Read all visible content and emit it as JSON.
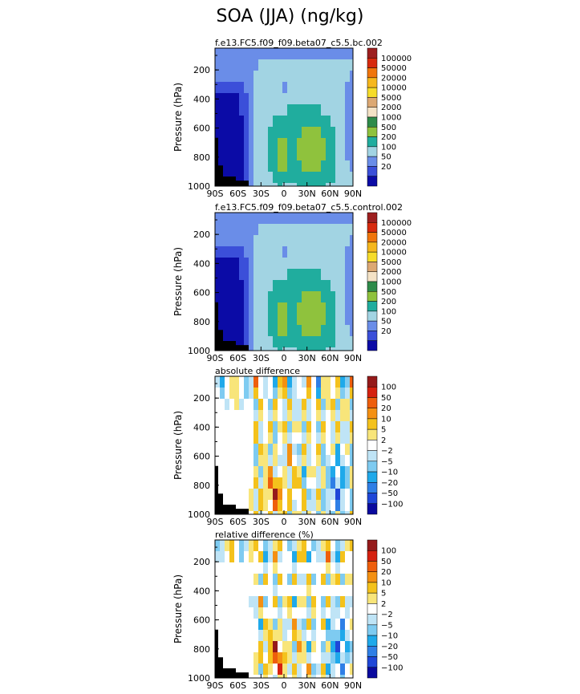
{
  "title": "SOA (JJA) (ng/kg)",
  "colors": {
    "abs": [
      "#0b0ba6",
      "#3b4fd9",
      "#6a8de8",
      "#a2d4e3",
      "#20ad9e",
      "#8fc23d",
      "#2e8b4a",
      "#f4e2c6",
      "#dca873",
      "#f6dc2a",
      "#f6b71c",
      "#f0750c",
      "#d72a0e",
      "#9d1f1f"
    ],
    "diff": [
      "#0a0a9e",
      "#1f47d8",
      "#2f7fe6",
      "#1fa9ea",
      "#7ecbf1",
      "#bfe4f6",
      "#ffffff",
      "#f8e57a",
      "#f4c21c",
      "#f49012",
      "#ee5e0c",
      "#d5210f",
      "#951a1a"
    ]
  },
  "panels": [
    {
      "subtitle": "f.e13.FC5.f09_f09.beta07_c5.5.bc.002",
      "ylabel": "Pressure (hPa)",
      "yticks": [
        "200",
        "400",
        "600",
        "800",
        "1000"
      ],
      "xticks": [
        "90S",
        "60S",
        "30S",
        "0",
        "30N",
        "60N",
        "90N"
      ],
      "legend": [
        "100000",
        "50000",
        "20000",
        "10000",
        "5000",
        "2000",
        "1000",
        "500",
        "200",
        "100",
        "50",
        "20"
      ],
      "palette": "abs"
    },
    {
      "subtitle": "f.e13.FC5.f09_f09.beta07_c5.5.control.002",
      "ylabel": "Pressure (hPa)",
      "yticks": [
        "200",
        "400",
        "600",
        "800",
        "1000"
      ],
      "xticks": [
        "90S",
        "60S",
        "30S",
        "0",
        "30N",
        "60N",
        "90N"
      ],
      "legend": [
        "100000",
        "50000",
        "20000",
        "10000",
        "5000",
        "2000",
        "1000",
        "500",
        "200",
        "100",
        "50",
        "20"
      ],
      "palette": "abs"
    },
    {
      "subtitle": "absolute difference",
      "ylabel": "Pressure (hPa)",
      "yticks": [
        "200",
        "400",
        "600",
        "800",
        "1000"
      ],
      "xticks": [
        "90S",
        "60S",
        "30S",
        "0",
        "30N",
        "60N",
        "90N"
      ],
      "legend": [
        "100",
        "50",
        "20",
        "10",
        "5",
        "2",
        "−2",
        "−5",
        "−10",
        "−20",
        "−50",
        "−100"
      ],
      "palette": "diff"
    },
    {
      "subtitle": "relative difference (%)",
      "ylabel": "Pressure (hPa)",
      "yticks": [
        "200",
        "400",
        "600",
        "800",
        "1000"
      ],
      "xticks": [
        "90S",
        "60S",
        "30S",
        "0",
        "30N",
        "60N",
        "90N"
      ],
      "legend": [
        "100",
        "50",
        "20",
        "10",
        "5",
        "2",
        "−2",
        "−5",
        "−10",
        "−20",
        "−50",
        "−100"
      ],
      "palette": "diff"
    }
  ],
  "chart_data": [
    {
      "type": "heatmap",
      "title": "f.e13.FC5.f09_f09.beta07_c5.5.bc.002",
      "xlabel": "",
      "ylabel": "Pressure (hPa)",
      "xlim": [
        -90,
        90
      ],
      "ylim": [
        1000,
        50
      ],
      "levels": [
        20,
        50,
        100,
        200,
        500,
        1000,
        2000,
        5000,
        10000,
        20000,
        50000,
        100000
      ]
    },
    {
      "type": "heatmap",
      "title": "f.e13.FC5.f09_f09.beta07_c5.5.control.002",
      "xlabel": "",
      "ylabel": "Pressure (hPa)",
      "xlim": [
        -90,
        90
      ],
      "ylim": [
        1000,
        50
      ],
      "levels": [
        20,
        50,
        100,
        200,
        500,
        1000,
        2000,
        5000,
        10000,
        20000,
        50000,
        100000
      ]
    },
    {
      "type": "heatmap",
      "title": "absolute difference",
      "xlabel": "",
      "ylabel": "Pressure (hPa)",
      "xlim": [
        -90,
        90
      ],
      "ylim": [
        1000,
        50
      ],
      "levels": [
        -100,
        -50,
        -20,
        -10,
        -5,
        -2,
        2,
        5,
        10,
        20,
        50,
        100
      ]
    },
    {
      "type": "heatmap",
      "title": "relative difference (%)",
      "xlabel": "",
      "ylabel": "Pressure (hPa)",
      "xlim": [
        -90,
        90
      ],
      "ylim": [
        1000,
        50
      ],
      "levels": [
        -100,
        -50,
        -20,
        -10,
        -5,
        -2,
        2,
        5,
        10,
        20,
        50,
        100
      ]
    }
  ]
}
